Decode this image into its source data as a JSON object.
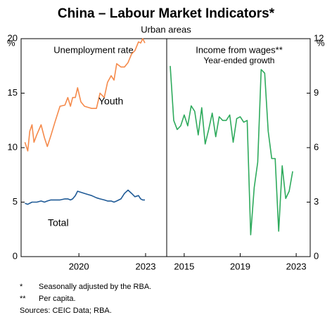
{
  "title": "China – Labour Market Indicators*",
  "subtitle": "Urban areas",
  "chart_data": [
    {
      "type": "line",
      "title": "Unemployment rate",
      "y_unit": "%",
      "x": [
        2017.57,
        2017.7,
        2017.79,
        2017.89,
        2017.98,
        2018.11,
        2018.3,
        2018.45,
        2018.58,
        2018.74,
        2018.93,
        2019.15,
        2019.37,
        2019.5,
        2019.62,
        2019.72,
        2019.84,
        2019.94,
        2020.09,
        2020.25,
        2020.57,
        2020.79,
        2020.95,
        2021.14,
        2021.29,
        2021.45,
        2021.58,
        2021.7,
        2021.89,
        2022.05,
        2022.21,
        2022.37,
        2022.52,
        2022.68,
        2022.78,
        2022.87,
        2022.97
      ],
      "series": [
        {
          "name": "Youth",
          "color": "#f58a4b",
          "values": [
            10.5,
            9.7,
            11.5,
            12.1,
            10.5,
            11.2,
            12.1,
            10.9,
            10.1,
            11.1,
            12.4,
            13.8,
            13.9,
            14.6,
            13.8,
            14.6,
            14.6,
            15.5,
            14.2,
            13.8,
            13.6,
            13.6,
            15.0,
            14.6,
            16.0,
            16.6,
            16.2,
            17.7,
            17.4,
            17.4,
            17.8,
            18.6,
            18.9,
            19.7,
            19.6,
            20.0,
            19.6
          ]
        },
        {
          "name": "Total",
          "color": "#1f5a96",
          "values": [
            4.9,
            4.8,
            4.9,
            5.0,
            5.0,
            5.0,
            5.1,
            5.0,
            5.1,
            5.2,
            5.2,
            5.2,
            5.3,
            5.3,
            5.2,
            5.3,
            5.6,
            6.0,
            5.9,
            5.8,
            5.6,
            5.4,
            5.3,
            5.2,
            5.1,
            5.1,
            5.0,
            5.1,
            5.3,
            5.8,
            6.1,
            5.8,
            5.5,
            5.6,
            5.3,
            5.2,
            5.2
          ]
        }
      ],
      "xlim": [
        2017.4,
        2023.95
      ],
      "xticks": [
        2020,
        2023
      ],
      "ylim": [
        0,
        20
      ],
      "yticks": [
        0,
        5,
        10,
        15,
        20
      ]
    },
    {
      "type": "line",
      "title": "Income from wages**",
      "subtitle": "Year-ended growth",
      "y_unit": "%",
      "x": [
        2014.0,
        2014.25,
        2014.5,
        2014.75,
        2015.0,
        2015.25,
        2015.5,
        2015.75,
        2016.0,
        2016.25,
        2016.5,
        2016.75,
        2017.0,
        2017.25,
        2017.5,
        2017.75,
        2018.0,
        2018.25,
        2018.5,
        2018.75,
        2019.0,
        2019.25,
        2019.5,
        2019.75,
        2020.0,
        2020.25,
        2020.5,
        2020.75,
        2021.0,
        2021.25,
        2021.5,
        2021.75,
        2022.0,
        2022.25,
        2022.5,
        2022.75
      ],
      "color": "#2eaa5c",
      "values": [
        10.5,
        7.5,
        7.0,
        7.2,
        7.8,
        7.2,
        8.3,
        8.0,
        6.7,
        8.2,
        6.2,
        7.0,
        7.9,
        6.6,
        7.7,
        7.5,
        7.5,
        7.8,
        6.3,
        7.6,
        7.7,
        7.4,
        7.5,
        1.2,
        3.8,
        5.2,
        10.3,
        10.1,
        6.9,
        5.4,
        5.4,
        1.4,
        5.0,
        3.2,
        3.6,
        4.7
      ],
      "xlim": [
        2013.75,
        2024.0
      ],
      "xticks": [
        2015,
        2019,
        2023
      ],
      "ylim": [
        0,
        12
      ],
      "yticks": [
        0,
        3,
        6,
        9,
        12
      ]
    }
  ],
  "notes": [
    {
      "marker": "*",
      "text": "Seasonally adjusted by the RBA."
    },
    {
      "marker": "**",
      "text": "Per capita."
    }
  ],
  "source": "Sources: CEIC Data; RBA."
}
